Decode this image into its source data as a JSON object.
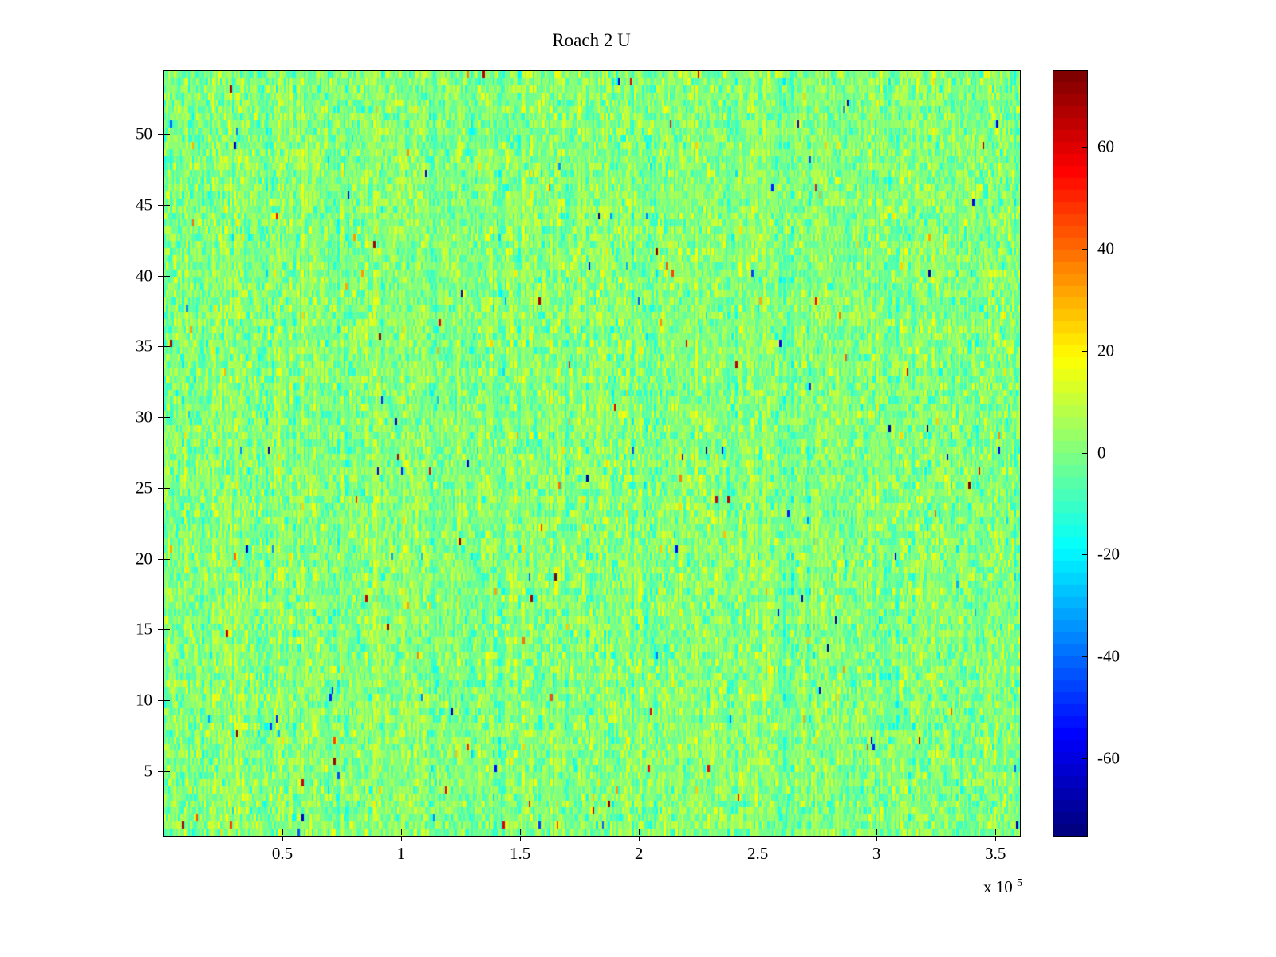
{
  "chart_data": {
    "type": "heatmap",
    "title": "Roach 2 U",
    "x_axis": {
      "lim": [
        0,
        360000
      ],
      "ticks": [
        50000,
        100000,
        150000,
        200000,
        250000,
        300000,
        350000
      ],
      "tick_labels": [
        "0.5",
        "1",
        "1.5",
        "2",
        "2.5",
        "3",
        "3.5"
      ],
      "exponent_prefix": "x 10",
      "exponent_power": "5"
    },
    "y_axis": {
      "lim": [
        0.5,
        54.5
      ],
      "ticks": [
        5,
        10,
        15,
        20,
        25,
        30,
        35,
        40,
        45,
        50
      ],
      "tick_labels": [
        "5",
        "10",
        "15",
        "20",
        "25",
        "30",
        "35",
        "40",
        "45",
        "50"
      ]
    },
    "colorbar": {
      "colormap": "jet",
      "clim": [
        -75,
        75
      ],
      "ticks": [
        60,
        40,
        20,
        0,
        -20,
        -40,
        -60
      ],
      "tick_labels": [
        "60",
        "40",
        "20",
        "0",
        "-20",
        "-40",
        "-60"
      ],
      "segments": 64
    },
    "heatmap": {
      "rows": 108,
      "cols": 430,
      "value_mean": 0.5,
      "value_std": 7.5,
      "outlier_prob": 0.004,
      "outlier_min": 25,
      "outlier_max": 75,
      "seed": 1337,
      "description": "Dense random noise field of values centered near 0 (light green) with teal/cyan and yellow variation and sparse saturated red/orange and dark blue outlier cells; rendered with the MATLAB jet colormap over color limits -75 to +75."
    }
  }
}
